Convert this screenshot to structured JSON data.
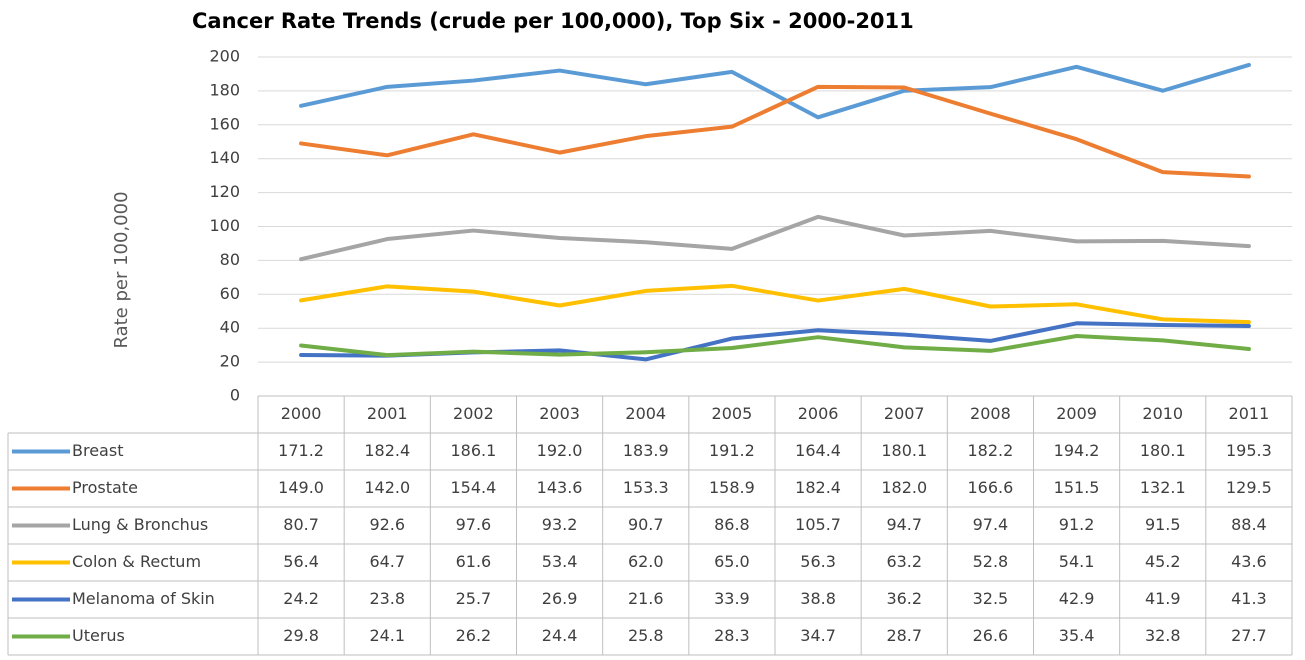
{
  "chart_data": {
    "type": "line",
    "title": "Cancer Rate Trends (crude per 100,000), Top Six  - 2000-2011",
    "y_label": "Rate per 100,000",
    "categories": [
      "2000",
      "2001",
      "2002",
      "2003",
      "2004",
      "2005",
      "2006",
      "2007",
      "2008",
      "2009",
      "2010",
      "2011"
    ],
    "ylim": [
      0,
      200
    ],
    "yticks": [
      0,
      20,
      40,
      60,
      80,
      100,
      120,
      140,
      160,
      180,
      200
    ],
    "grid": true,
    "series": [
      {
        "name": "Breast",
        "color": "#5b9bd5",
        "values": [
          171.2,
          182.4,
          186.1,
          192.0,
          183.9,
          191.2,
          164.4,
          180.1,
          182.2,
          194.2,
          180.1,
          195.3
        ],
        "value_labels": [
          "171.2",
          "182.4",
          "186.1",
          "192.0",
          "183.9",
          "191.2",
          "164.4",
          "180.1",
          "182.2",
          "194.2",
          "180.1",
          "195.3"
        ]
      },
      {
        "name": "Prostate",
        "color": "#ed7d31",
        "values": [
          149.0,
          142.0,
          154.4,
          143.6,
          153.3,
          158.9,
          182.4,
          182.0,
          166.6,
          151.5,
          132.1,
          129.5
        ],
        "value_labels": [
          "149.0",
          "142.0",
          "154.4",
          "143.6",
          "153.3",
          "158.9",
          "182.4",
          "182.0",
          "166.6",
          "151.5",
          "132.1",
          "129.5"
        ]
      },
      {
        "name": "Lung & Bronchus",
        "color": "#a5a5a5",
        "values": [
          80.7,
          92.6,
          97.6,
          93.2,
          90.7,
          86.8,
          105.7,
          94.7,
          97.4,
          91.2,
          91.5,
          88.4
        ],
        "value_labels": [
          "80.7",
          "92.6",
          "97.6",
          "93.2",
          "90.7",
          "86.8",
          "105.7",
          "94.7",
          "97.4",
          "91.2",
          "91.5",
          "88.4"
        ]
      },
      {
        "name": "Colon & Rectum",
        "color": "#ffc000",
        "values": [
          56.4,
          64.7,
          61.6,
          53.4,
          62.0,
          65.0,
          56.3,
          63.2,
          52.8,
          54.1,
          45.2,
          43.6
        ],
        "value_labels": [
          "56.4",
          "64.7",
          "61.6",
          "53.4",
          "62.0",
          "65.0",
          "56.3",
          "63.2",
          "52.8",
          "54.1",
          "45.2",
          "43.6"
        ]
      },
      {
        "name": "Melanoma of Skin",
        "color": "#4472c4",
        "values": [
          24.2,
          23.8,
          25.7,
          26.9,
          21.6,
          33.9,
          38.8,
          36.2,
          32.5,
          42.9,
          41.9,
          41.3
        ],
        "value_labels": [
          "24.2",
          "23.8",
          "25.7",
          "26.9",
          "21.6",
          "33.9",
          "38.8",
          "36.2",
          "32.5",
          "42.9",
          "41.9",
          "41.3"
        ]
      },
      {
        "name": "Uterus",
        "color": "#70ad47",
        "values": [
          29.8,
          24.1,
          26.2,
          24.4,
          25.8,
          28.3,
          34.7,
          28.7,
          26.6,
          35.4,
          32.8,
          27.7
        ],
        "value_labels": [
          "29.8",
          "24.1",
          "26.2",
          "24.4",
          "25.8",
          "28.3",
          "34.7",
          "28.7",
          "26.6",
          "35.4",
          "32.8",
          "27.7"
        ]
      }
    ]
  }
}
